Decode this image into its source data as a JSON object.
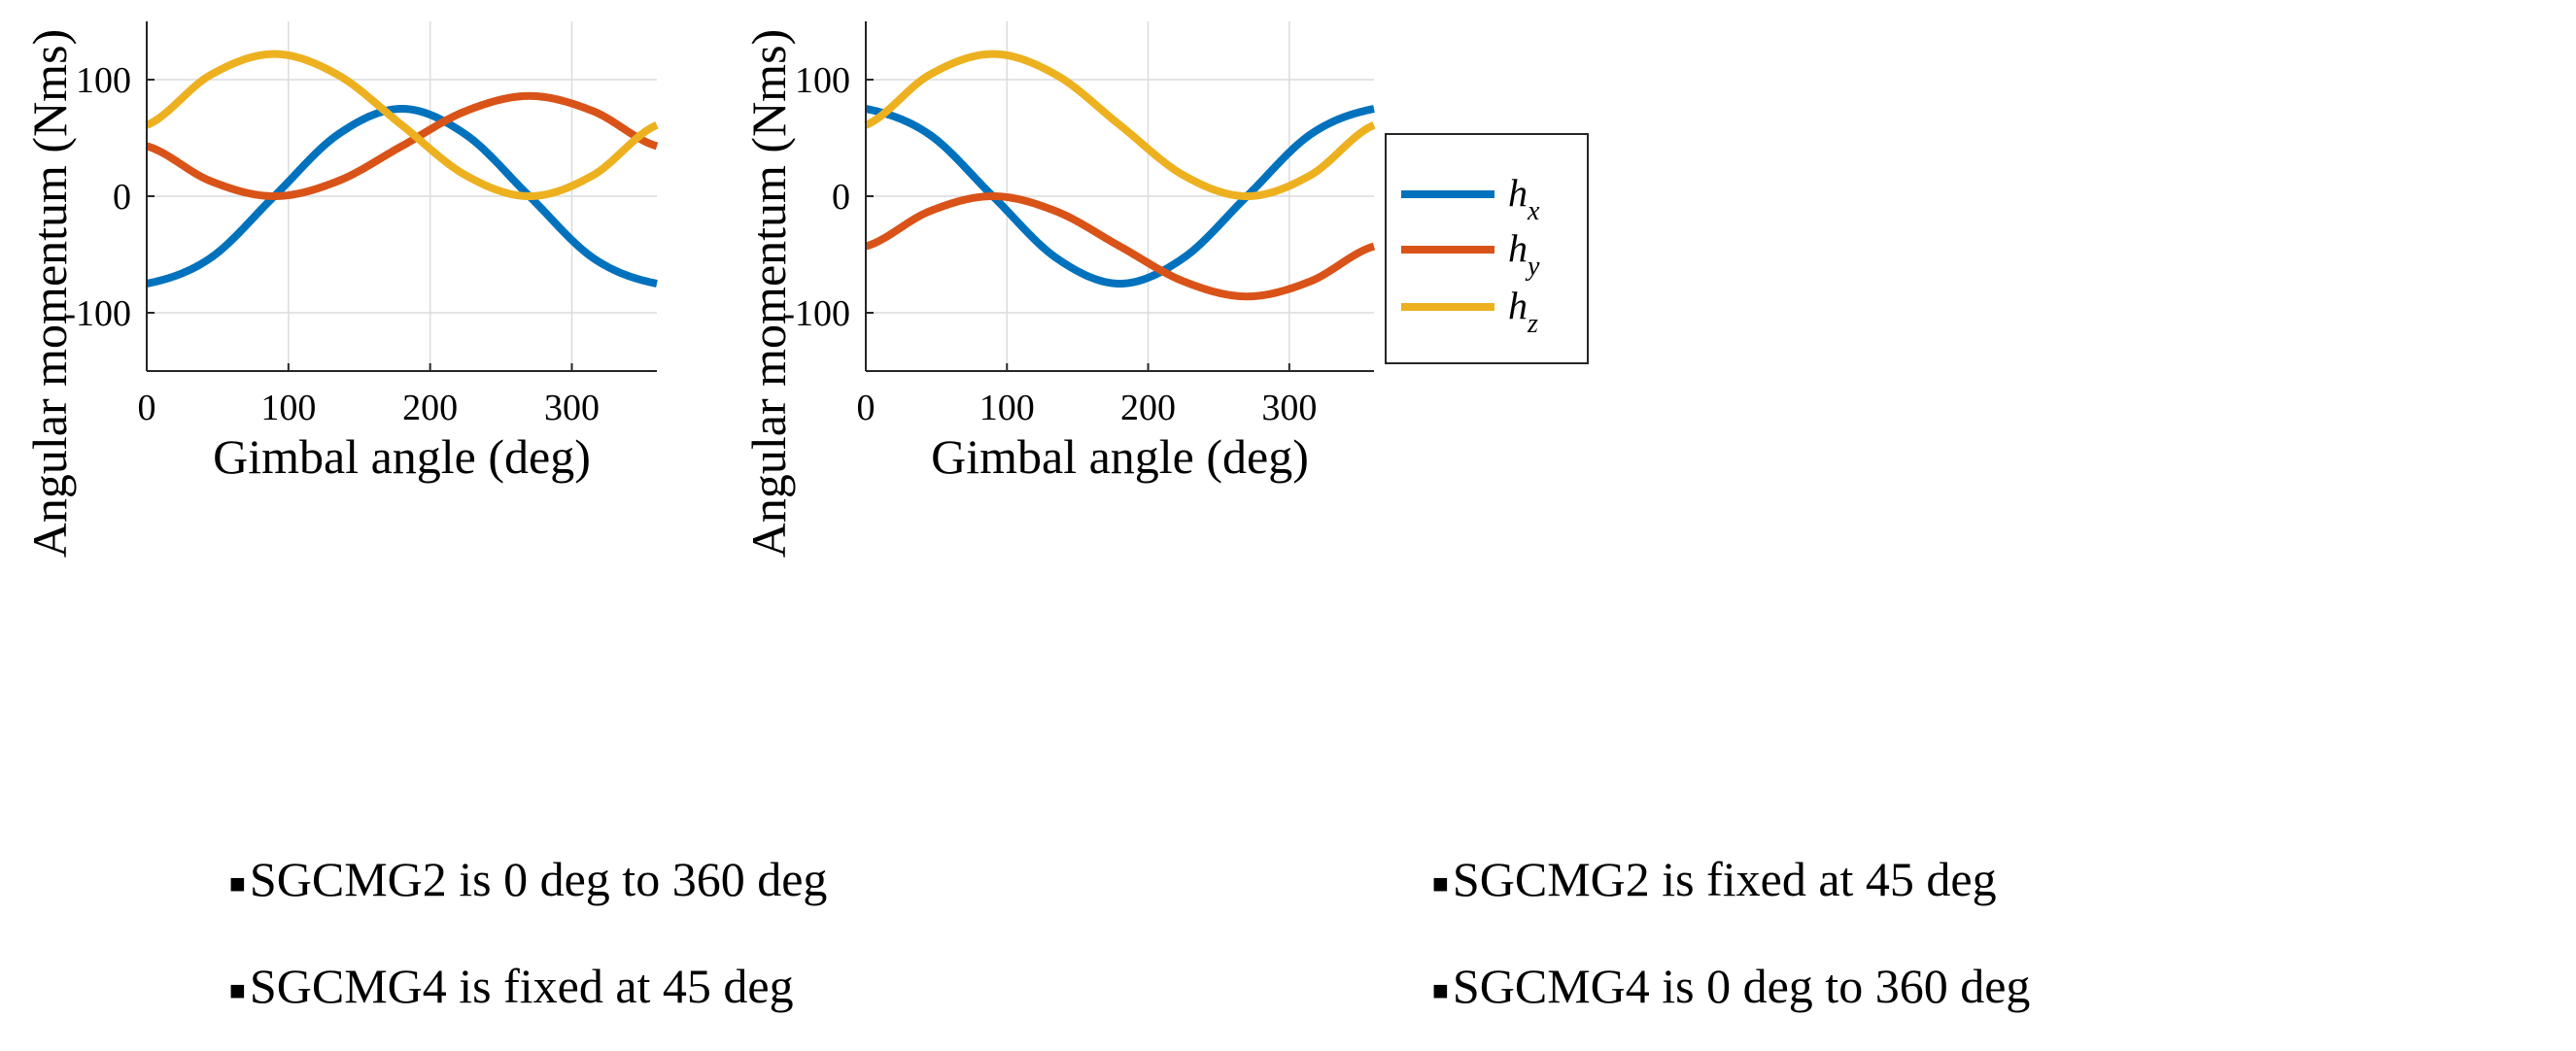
{
  "colors": {
    "hx": "#0072BD",
    "hy": "#D95319",
    "hz": "#EDB120",
    "grid": "#dcdcdc",
    "axis": "#262626"
  },
  "legend": {
    "entries": [
      {
        "symbol": "h",
        "sub": "x",
        "color_key": "hx"
      },
      {
        "symbol": "h",
        "sub": "y",
        "color_key": "hy"
      },
      {
        "symbol": "h",
        "sub": "z",
        "color_key": "hz"
      }
    ]
  },
  "chart_data": [
    {
      "type": "line",
      "xlabel": "Gimbal angle  (deg)",
      "ylabel": "Angular momentum  (Nms)",
      "xlim": [
        0,
        360
      ],
      "ylim": [
        -150,
        150
      ],
      "xticks": [
        0,
        100,
        200,
        300
      ],
      "xtick_labels": [
        "0",
        "100",
        "200",
        "300"
      ],
      "yticks": [
        100,
        0,
        -100
      ],
      "ytick_labels": [
        "100",
        "0",
        "-100"
      ],
      "grid": true,
      "series": [
        {
          "name": "h_x",
          "color_key": "hx",
          "x": [
            0,
            45,
            90,
            135,
            180,
            225,
            270,
            315,
            360
          ],
          "values": [
            -75,
            -53,
            0,
            53,
            75,
            53,
            0,
            -53,
            -75
          ]
        },
        {
          "name": "h_y",
          "color_key": "hy",
          "x": [
            0,
            45,
            90,
            135,
            180,
            225,
            270,
            315,
            360
          ],
          "values": [
            43,
            13,
            0,
            13,
            43,
            73,
            86,
            73,
            43
          ]
        },
        {
          "name": "h_z",
          "color_key": "hz",
          "x": [
            0,
            45,
            90,
            135,
            180,
            225,
            270,
            315,
            360
          ],
          "values": [
            61,
            104,
            122,
            104,
            61,
            18,
            0,
            18,
            61
          ]
        }
      ],
      "caption": [
        "SGCMG2  is 0 deg to 360  deg",
        "SGCMG4  is fixed at 45  deg"
      ]
    },
    {
      "type": "line",
      "xlabel": "Gimbal angle  (deg)",
      "ylabel": "Angular momentum  (Nms)",
      "xlim": [
        0,
        360
      ],
      "ylim": [
        -150,
        150
      ],
      "xticks": [
        0,
        100,
        200,
        300
      ],
      "xtick_labels": [
        "0",
        "100",
        "200",
        "300"
      ],
      "yticks": [
        100,
        0,
        -100
      ],
      "ytick_labels": [
        "100",
        "0",
        "-100"
      ],
      "grid": true,
      "series": [
        {
          "name": "h_x",
          "color_key": "hx",
          "x": [
            0,
            45,
            90,
            135,
            180,
            225,
            270,
            315,
            360
          ],
          "values": [
            75,
            53,
            0,
            -53,
            -75,
            -53,
            0,
            53,
            75
          ]
        },
        {
          "name": "h_y",
          "color_key": "hy",
          "x": [
            0,
            45,
            90,
            135,
            180,
            225,
            270,
            315,
            360
          ],
          "values": [
            -43,
            -13,
            0,
            -13,
            -43,
            -73,
            -86,
            -73,
            -43
          ]
        },
        {
          "name": "h_z",
          "color_key": "hz",
          "x": [
            0,
            45,
            90,
            135,
            180,
            225,
            270,
            315,
            360
          ],
          "values": [
            61,
            104,
            122,
            104,
            61,
            18,
            0,
            18,
            61
          ]
        }
      ],
      "caption": [
        "SGCMG2  is fixed at 45  deg",
        "SGCMG4  is 0 deg to 360  deg"
      ]
    }
  ]
}
